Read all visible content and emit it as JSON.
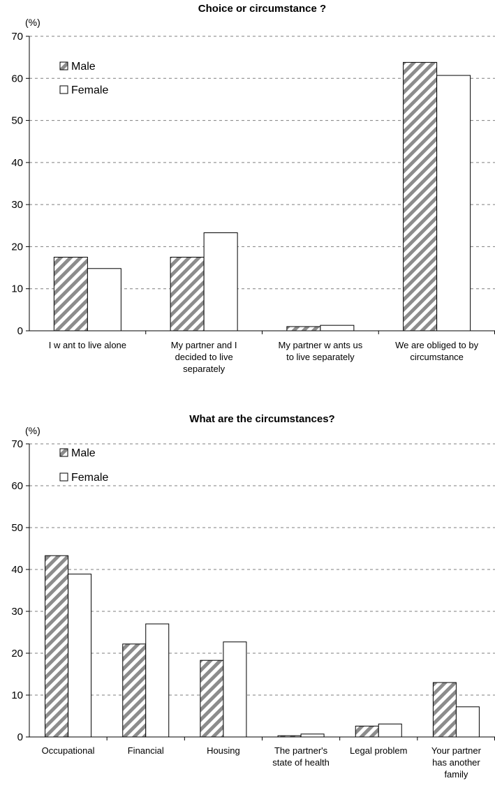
{
  "chart_data": [
    {
      "type": "bar",
      "title": "Choice or circumstance ?",
      "ylabel": "(%)",
      "ylim": [
        0,
        70
      ],
      "yticks": [
        "0",
        "10",
        "20",
        "30",
        "40",
        "50",
        "60",
        "70"
      ],
      "grid": true,
      "legend_position": "top-left",
      "categories": [
        [
          "I w ant to live alone"
        ],
        [
          "My partner and I",
          "decided to live",
          "separately"
        ],
        [
          "My partner w ants us",
          "to live separately"
        ],
        [
          "We are obliged to by",
          "circumstance"
        ]
      ],
      "series": [
        {
          "name": "Male",
          "values": [
            17.5,
            17.5,
            1.0,
            63.8
          ],
          "fill": "hatched"
        },
        {
          "name": "Female",
          "values": [
            14.8,
            23.3,
            1.3,
            60.7
          ],
          "fill": "white"
        }
      ]
    },
    {
      "type": "bar",
      "title": "What are the circumstances?",
      "ylabel": "(%)",
      "ylim": [
        0,
        70
      ],
      "yticks": [
        "0",
        "10",
        "20",
        "30",
        "40",
        "50",
        "60",
        "70"
      ],
      "grid": true,
      "legend_position": "top-left",
      "categories": [
        [
          "Occupational"
        ],
        [
          "Financial"
        ],
        [
          "Housing"
        ],
        [
          "The partner's",
          "state of health"
        ],
        [
          "Legal problem"
        ],
        [
          "Your partner",
          "has another",
          "family"
        ]
      ],
      "series": [
        {
          "name": "Male",
          "values": [
            43.3,
            22.2,
            18.3,
            0.3,
            2.6,
            13.0
          ],
          "fill": "hatched"
        },
        {
          "name": "Female",
          "values": [
            38.9,
            27.0,
            22.7,
            0.7,
            3.1,
            7.2
          ],
          "fill": "white"
        }
      ]
    }
  ]
}
